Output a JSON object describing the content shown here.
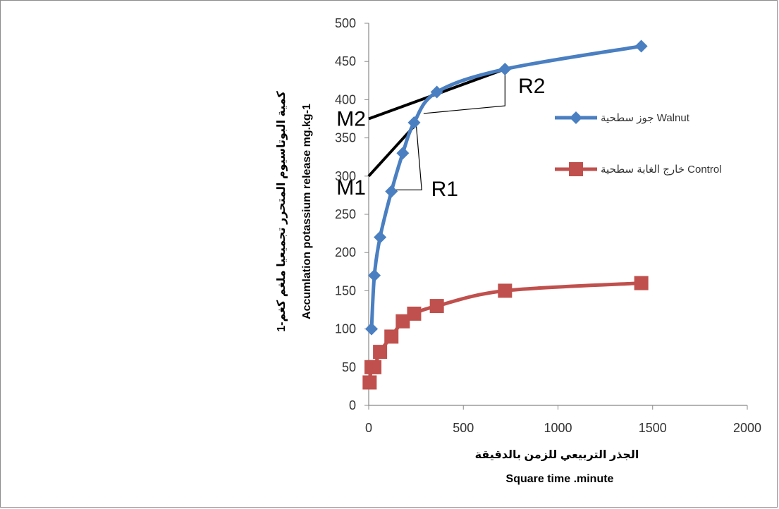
{
  "chart_data": {
    "type": "line",
    "xlim": [
      0,
      2000
    ],
    "ylim": [
      0,
      500
    ],
    "x_ticks": [
      "0",
      "500",
      "1000",
      "1500",
      "2000"
    ],
    "y_ticks": [
      "0",
      "50",
      "100",
      "150",
      "200",
      "250",
      "300",
      "350",
      "400",
      "450",
      "500"
    ],
    "xlabel_ar": "الجذر التربيعي للزمن بالدقيقة",
    "xlabel_en": "Square time .minute",
    "ylabel_ar": "كمية البوتاسيوم المتحرر تجميعيا ملغم كغم-1",
    "ylabel_en": "Accumlation potassium release mg.kg-1",
    "grid": false,
    "legend_position": "right",
    "series": [
      {
        "name": "جوز سطحية Walnut",
        "color": "#4a7fc1",
        "marker": "diamond",
        "x": [
          15,
          30,
          60,
          120,
          180,
          240,
          360,
          720,
          1440
        ],
        "y": [
          100,
          170,
          220,
          280,
          330,
          370,
          410,
          440,
          470
        ]
      },
      {
        "name": "خارج الغابة سطحية Control",
        "color": "#c0504d",
        "marker": "square",
        "x": [
          5,
          15,
          30,
          60,
          120,
          180,
          240,
          360,
          720,
          1440
        ],
        "y": [
          30,
          50,
          50,
          70,
          90,
          110,
          120,
          130,
          150,
          160
        ]
      }
    ],
    "annotations": [
      "M1",
      "M2",
      "R1",
      "R2"
    ]
  }
}
